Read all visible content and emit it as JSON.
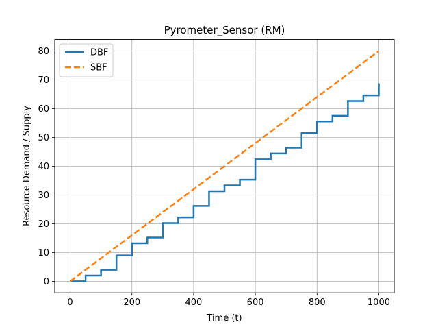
{
  "chart_data": {
    "type": "line",
    "title": "Pyrometer_Sensor (RM)",
    "xlabel": "Time (t)",
    "ylabel": "Resource Demand / Supply",
    "xlim": [
      -50,
      1050
    ],
    "ylim": [
      -4,
      84
    ],
    "xticks": [
      0,
      200,
      400,
      600,
      800,
      1000
    ],
    "yticks": [
      0,
      10,
      20,
      30,
      40,
      50,
      60,
      70,
      80
    ],
    "grid": true,
    "legend_position": "top-left",
    "series": [
      {
        "name": "DBF",
        "style": "step",
        "color": "#1f77b4",
        "dash": "solid",
        "x": [
          0,
          50,
          100,
          150,
          200,
          250,
          300,
          350,
          400,
          450,
          500,
          550,
          600,
          650,
          700,
          750,
          800,
          850,
          900,
          950,
          1000
        ],
        "y": [
          0,
          2,
          4,
          9,
          13.2,
          15.2,
          20.2,
          22.2,
          26.2,
          31.3,
          33.3,
          35.3,
          42.4,
          44.4,
          46.4,
          51.5,
          55.5,
          57.5,
          62.6,
          64.6,
          68.8
        ]
      },
      {
        "name": "SBF",
        "style": "line",
        "color": "#ff7f0e",
        "dash": "dashed",
        "x": [
          0,
          1000
        ],
        "y": [
          0,
          80
        ]
      }
    ]
  }
}
